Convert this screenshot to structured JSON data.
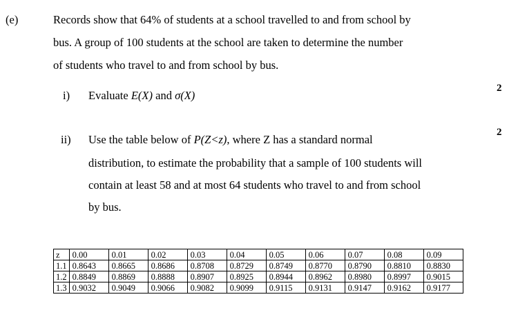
{
  "part_label": "(e)",
  "intro_lines": [
    "Records show that 64% of students at a school travelled to and from school by",
    "bus. A group of 100 students at the school are taken to determine the number",
    "of students who travel to and from school by bus."
  ],
  "sub_i": {
    "label": "i)",
    "text_before": "Evaluate ",
    "expr1": "E(X)",
    "and": " and ",
    "expr2": "σ(X)",
    "marks": "2"
  },
  "sub_ii": {
    "label": "ii)",
    "line1_before": "Use the table below of ",
    "line1_expr": "P(Z<z)",
    "line1_after": ", where Z has a standard normal",
    "lines": [
      "distribution, to estimate the probability that a sample of 100 students will",
      "contain at least 58 and at most 64 students who travel to and from school",
      "by bus."
    ],
    "marks": "2"
  },
  "table": {
    "header": [
      "z",
      "0.00",
      "0.01",
      "0.02",
      "0.03",
      "0.04",
      "0.05",
      "0.06",
      "0.07",
      "0.08",
      "0.09"
    ],
    "rows": [
      [
        "1.1",
        "0.8643",
        "0.8665",
        "0.8686",
        "0.8708",
        "0.8729",
        "0.8749",
        "0.8770",
        "0.8790",
        "0.8810",
        "0.8830"
      ],
      [
        "1.2",
        "0.8849",
        "0.8869",
        "0.8888",
        "0.8907",
        "0.8925",
        "0.8944",
        "0.8962",
        "0.8980",
        "0.8997",
        "0.9015"
      ],
      [
        "1.3",
        "0.9032",
        "0.9049",
        "0.9066",
        "0.9082",
        "0.9099",
        "0.9115",
        "0.9131",
        "0.9147",
        "0.9162",
        "0.9177"
      ]
    ]
  }
}
